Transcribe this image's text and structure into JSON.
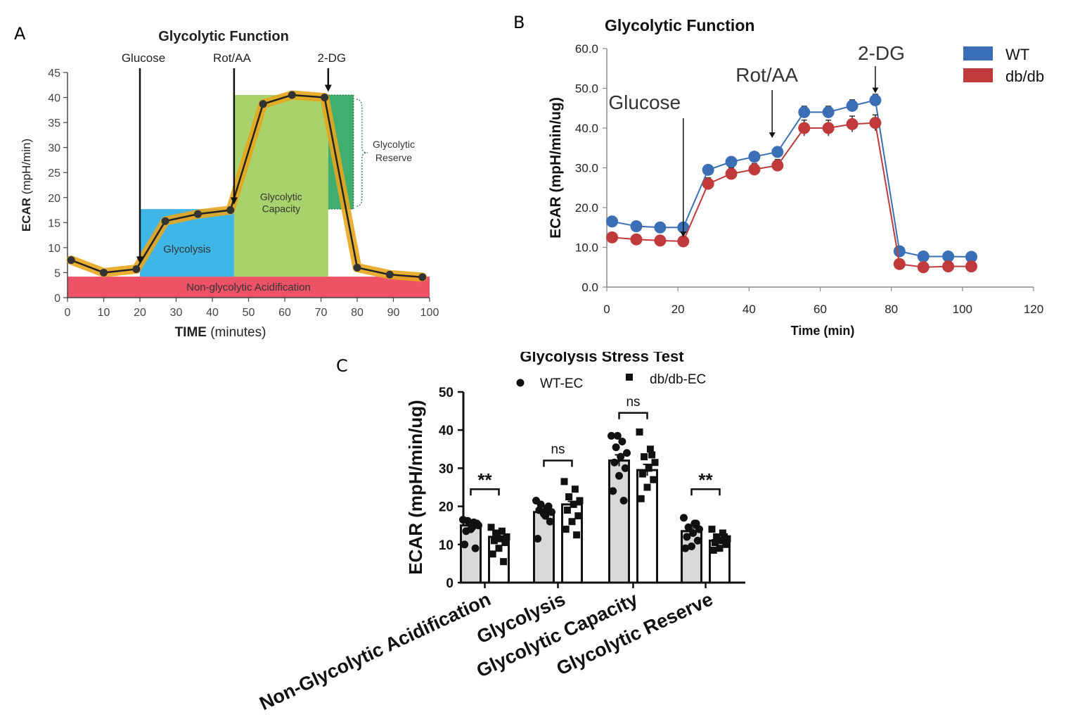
{
  "panel_labels": {
    "a": "A",
    "b": "B",
    "c": "C"
  },
  "colors": {
    "glycolysis": "#3fb6e8",
    "capacity": "#a8d26b",
    "reserve": "#3fae6f",
    "nonglyco": "#ee5266",
    "trace": "#e7a51e",
    "wt": "#3b6fb5",
    "dbdb": "#c0393b",
    "bar_fill": "#d9d9d9"
  },
  "chart_data": [
    {
      "id": "A",
      "type": "line",
      "title": "Glycolytic Function",
      "ylabel_bold": "ECAR",
      "ylabel_rest": "(mpH/min)",
      "xlabel_bold": "TIME",
      "xlabel_rest": "(minutes)",
      "xlim": [
        0,
        100
      ],
      "ylim": [
        0,
        45
      ],
      "xticks": [
        0,
        10,
        20,
        30,
        40,
        50,
        60,
        70,
        80,
        90,
        100
      ],
      "yticks": [
        0,
        5,
        10,
        15,
        20,
        25,
        30,
        35,
        40,
        45
      ],
      "x": [
        1,
        10,
        19,
        27,
        36,
        45,
        54,
        62,
        71,
        80,
        89,
        98
      ],
      "y": [
        7.5,
        5,
        5.7,
        15.3,
        16.7,
        17.5,
        38.7,
        40.5,
        40,
        6,
        4.6,
        4.1
      ],
      "regions": [
        {
          "label": "Non-glycolytic Acidification",
          "x": [
            0,
            100
          ],
          "y": [
            0,
            4.2
          ],
          "color_key": "nonglyco"
        },
        {
          "label": "Glycolysis",
          "x": [
            20,
            46
          ],
          "y": [
            4.2,
            17.7
          ],
          "color_key": "glycolysis"
        },
        {
          "label_line1": "Glycolytic",
          "label_line2": "Capacity",
          "x": [
            46,
            72
          ],
          "y": [
            4.2,
            40.5
          ],
          "color_key": "capacity"
        },
        {
          "label_line1": "Glycolytic",
          "label_line2": "Reserve",
          "x": [
            72,
            79
          ],
          "y": [
            17.7,
            40.5
          ],
          "color_key": "reserve"
        }
      ],
      "injections": [
        {
          "label": "Glucose",
          "x": 20
        },
        {
          "label": "Rot/AA",
          "x": 46
        },
        {
          "label": "2-DG",
          "x": 72
        }
      ]
    },
    {
      "id": "B",
      "type": "line",
      "title": "Glycolytic Function",
      "ylabel": "ECAR (mpH/min/ug)",
      "xlabel": "Time (min)",
      "xlim": [
        0,
        120
      ],
      "ylim": [
        0,
        60
      ],
      "xticks": [
        0,
        20,
        40,
        60,
        80,
        100,
        120
      ],
      "yticks": [
        "0.0",
        "10.0",
        "20.0",
        "30.0",
        "40.0",
        "50.0",
        "60.0"
      ],
      "x": [
        1.5,
        8.3,
        15,
        21.5,
        28.5,
        35,
        41.5,
        48,
        55.5,
        62.3,
        69,
        75.5,
        82.3,
        89,
        96,
        102.5
      ],
      "series": [
        {
          "name": "WT",
          "color_key": "wt",
          "values": [
            16.5,
            15.3,
            15,
            15,
            29.5,
            31.5,
            32.8,
            34,
            44,
            44,
            45.6,
            47,
            9,
            7.7,
            7.7,
            7.6
          ],
          "errors": [
            0.5,
            0.5,
            0.5,
            0.5,
            1,
            1,
            1,
            1,
            1.5,
            1.5,
            1.5,
            1.5,
            0.5,
            0.5,
            0.5,
            0.5
          ]
        },
        {
          "name": "db/db",
          "color_key": "dbdb",
          "values": [
            12.5,
            12,
            11.7,
            11.5,
            26,
            28.5,
            29.6,
            30.6,
            40,
            40,
            41,
            41.3,
            5.8,
            5,
            5.2,
            5.2
          ],
          "errors": [
            0.5,
            0.5,
            0.5,
            0.5,
            1.5,
            1.5,
            1.5,
            1.5,
            2,
            2,
            2,
            2,
            0.5,
            0.5,
            0.5,
            0.5
          ]
        }
      ],
      "annotations": [
        {
          "label": "Glucose",
          "x": 21.5
        },
        {
          "label": "Rot/AA",
          "x": 46.5
        },
        {
          "label": "2-DG",
          "x": 75.5
        }
      ]
    },
    {
      "id": "C",
      "type": "bar",
      "title": "Glycolysis Stress  Test",
      "ylabel": "ECAR  (mpH/min/ug)",
      "ylim": [
        0,
        50
      ],
      "yticks": [
        0,
        10,
        20,
        30,
        40,
        50
      ],
      "categories": [
        "Non-Glycolytic Acidification",
        "Glycolysis",
        "Glycolytic Capacity",
        "Glycolytic Reserve"
      ],
      "series": [
        {
          "name": "WT-EC",
          "marker": "circle",
          "fill_key": "bar_fill",
          "values": [
            15,
            18.5,
            32,
            13.5
          ],
          "errors": [
            0.8,
            0.8,
            1.5,
            0.8
          ],
          "points": [
            [
              16.5,
              15.8,
              16.2,
              15,
              14.5,
              13.5,
              15.5,
              14,
              10,
              9
            ],
            [
              21.5,
              19.5,
              20.5,
              18.5,
              17.5,
              19,
              16,
              18,
              11.5,
              20
            ],
            [
              38.5,
              37,
              35.5,
              34,
              33,
              31.5,
              30,
              28,
              24,
              21.5,
              38.5
            ],
            [
              17,
              15.5,
              14.5,
              14,
              13,
              12,
              11,
              9.5,
              9,
              15.5
            ]
          ]
        },
        {
          "name": "db/db-EC",
          "marker": "square",
          "fill_key": "white",
          "values": [
            12,
            20.5,
            29.5,
            11
          ],
          "errors": [
            0.8,
            0.8,
            1.5,
            0.8
          ],
          "points": [
            [
              14.5,
              13.5,
              13,
              12,
              11.5,
              11,
              10.5,
              9,
              7.5,
              5.5,
              12.5
            ],
            [
              26.5,
              24.5,
              22.5,
              21.5,
              20.5,
              19,
              17.5,
              16,
              14,
              12.5
            ],
            [
              39.5,
              35,
              33,
              31.5,
              30,
              28.5,
              27,
              25,
              22,
              33.5
            ],
            [
              14,
              13,
              12,
              11.5,
              11,
              10.5,
              10,
              9,
              8.5,
              12
            ]
          ]
        }
      ],
      "comparisons": [
        "**",
        "ns",
        "ns",
        "**"
      ]
    }
  ]
}
